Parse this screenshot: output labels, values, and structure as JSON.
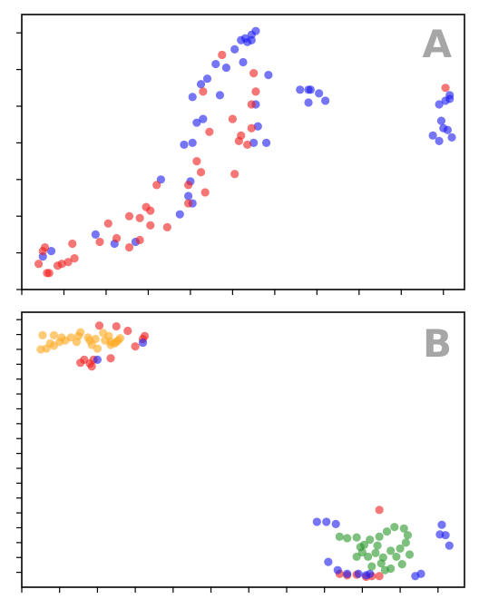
{
  "colors": {
    "red": "#f02020",
    "blue": "#2020f0",
    "orange": "#ffaa22",
    "green": "#2e9a2e",
    "panel_letter": "#a6a6a6"
  },
  "chart_data": [
    {
      "type": "scatter",
      "panel_label": "A",
      "tick_labels": "none",
      "xlim": [
        0,
        10.5
      ],
      "ylim": [
        0,
        7.5
      ],
      "x_ticks": [
        0,
        1,
        2,
        3,
        4,
        5,
        6,
        7,
        8,
        9,
        10
      ],
      "y_ticks": [
        0,
        1,
        2,
        3,
        4,
        5,
        6,
        7
      ],
      "series": [
        {
          "color_key": "blue",
          "points": [
            [
              0.7,
              1.05
            ],
            [
              0.5,
              0.9
            ],
            [
              1.75,
              1.5
            ],
            [
              2.2,
              1.25
            ],
            [
              2.7,
              1.3
            ],
            [
              3.3,
              3.0
            ],
            [
              3.75,
              2.05
            ],
            [
              3.95,
              2.55
            ],
            [
              4.0,
              2.95
            ],
            [
              4.05,
              2.35
            ],
            [
              3.85,
              3.95
            ],
            [
              4.05,
              4.0
            ],
            [
              4.15,
              4.55
            ],
            [
              4.3,
              4.65
            ],
            [
              4.05,
              5.25
            ],
            [
              4.25,
              5.6
            ],
            [
              4.4,
              5.75
            ],
            [
              4.6,
              6.15
            ],
            [
              4.85,
              6.05
            ],
            [
              4.7,
              5.3
            ],
            [
              5.05,
              6.55
            ],
            [
              5.2,
              6.8
            ],
            [
              5.3,
              6.85
            ],
            [
              5.45,
              6.95
            ],
            [
              5.35,
              6.75
            ],
            [
              5.45,
              6.8
            ],
            [
              5.55,
              7.05
            ],
            [
              5.25,
              6.2
            ],
            [
              5.55,
              5.05
            ],
            [
              5.6,
              4.45
            ],
            [
              5.5,
              4.0
            ],
            [
              5.8,
              4.0
            ],
            [
              5.85,
              5.85
            ],
            [
              6.6,
              5.45
            ],
            [
              6.8,
              5.45
            ],
            [
              6.85,
              5.45
            ],
            [
              7.05,
              5.35
            ],
            [
              7.2,
              5.15
            ],
            [
              6.8,
              5.1
            ],
            [
              10.15,
              5.3
            ],
            [
              9.9,
              5.05
            ],
            [
              10.05,
              5.15
            ],
            [
              10.15,
              5.2
            ],
            [
              9.95,
              4.6
            ],
            [
              10.1,
              4.35
            ],
            [
              10.2,
              4.15
            ],
            [
              10.0,
              4.4
            ],
            [
              9.75,
              4.2
            ],
            [
              9.9,
              4.05
            ]
          ]
        },
        {
          "color_key": "red",
          "points": [
            [
              0.55,
              1.15
            ],
            [
              0.5,
              1.05
            ],
            [
              0.4,
              0.7
            ],
            [
              0.6,
              0.45
            ],
            [
              0.65,
              0.45
            ],
            [
              0.85,
              0.65
            ],
            [
              0.95,
              0.7
            ],
            [
              1.1,
              0.75
            ],
            [
              1.25,
              0.85
            ],
            [
              1.2,
              1.25
            ],
            [
              1.85,
              1.3
            ],
            [
              2.05,
              1.8
            ],
            [
              2.25,
              1.4
            ],
            [
              2.55,
              2.0
            ],
            [
              2.55,
              1.15
            ],
            [
              2.8,
              1.95
            ],
            [
              2.8,
              1.35
            ],
            [
              2.95,
              2.25
            ],
            [
              3.05,
              1.75
            ],
            [
              3.2,
              2.85
            ],
            [
              3.45,
              1.7
            ],
            [
              3.05,
              2.15
            ],
            [
              3.95,
              2.85
            ],
            [
              4.25,
              3.2
            ],
            [
              4.35,
              2.65
            ],
            [
              3.95,
              2.35
            ],
            [
              4.15,
              3.5
            ],
            [
              4.45,
              4.3
            ],
            [
              4.3,
              5.4
            ],
            [
              4.75,
              6.4
            ],
            [
              5.15,
              4.05
            ],
            [
              5.2,
              4.2
            ],
            [
              5.0,
              4.65
            ],
            [
              5.05,
              3.15
            ],
            [
              5.45,
              4.4
            ],
            [
              5.45,
              5.05
            ],
            [
              5.5,
              5.9
            ],
            [
              5.55,
              5.4
            ],
            [
              5.35,
              3.95
            ],
            [
              10.05,
              5.5
            ]
          ]
        }
      ]
    },
    {
      "type": "scatter",
      "panel_label": "B",
      "tick_labels": "none",
      "xlim": [
        0,
        11.7
      ],
      "ylim": [
        0,
        18.5
      ],
      "x_ticks": [
        0,
        1,
        2,
        3,
        4,
        5,
        6,
        7,
        8,
        9,
        10,
        11
      ],
      "y_ticks": [
        1,
        2,
        3,
        4,
        5,
        6,
        7,
        8,
        9,
        10,
        11,
        12,
        13,
        14,
        15,
        16,
        17,
        18
      ],
      "series": [
        {
          "color_key": "orange",
          "points": [
            [
              0.5,
              16.0
            ],
            [
              0.65,
              16.05
            ],
            [
              0.75,
              16.4
            ],
            [
              0.85,
              16.25
            ],
            [
              1.0,
              16.5
            ],
            [
              1.15,
              16.6
            ],
            [
              1.3,
              16.8
            ],
            [
              1.45,
              16.5
            ],
            [
              1.5,
              16.9
            ],
            [
              1.75,
              16.8
            ],
            [
              1.8,
              16.6
            ],
            [
              1.85,
              16.3
            ],
            [
              1.95,
              16.7
            ],
            [
              2.0,
              16.05
            ],
            [
              2.2,
              16.6
            ],
            [
              2.3,
              16.9
            ],
            [
              2.35,
              16.3
            ],
            [
              2.5,
              16.5
            ],
            [
              2.6,
              16.75
            ],
            [
              2.35,
              16.5
            ],
            [
              0.55,
              16.95
            ],
            [
              0.85,
              16.95
            ],
            [
              1.05,
              16.8
            ],
            [
              1.55,
              17.15
            ],
            [
              2.15,
              17.1
            ],
            [
              2.55,
              16.6
            ],
            [
              2.45,
              16.4
            ]
          ]
        },
        {
          "color_key": "red",
          "points": [
            [
              1.55,
              15.1
            ],
            [
              1.65,
              15.3
            ],
            [
              1.8,
              15.05
            ],
            [
              1.85,
              14.85
            ],
            [
              1.9,
              15.3
            ],
            [
              2.05,
              17.6
            ],
            [
              2.35,
              15.4
            ],
            [
              2.5,
              17.55
            ],
            [
              2.8,
              17.25
            ],
            [
              3.0,
              16.2
            ],
            [
              3.2,
              16.7
            ],
            [
              3.25,
              16.9
            ],
            [
              9.45,
              5.2
            ],
            [
              8.4,
              0.9
            ],
            [
              8.6,
              0.8
            ],
            [
              8.85,
              0.85
            ],
            [
              9.1,
              0.7
            ],
            [
              9.25,
              0.75
            ],
            [
              9.45,
              0.75
            ]
          ]
        },
        {
          "color_key": "blue",
          "points": [
            [
              2.0,
              15.3
            ],
            [
              3.2,
              16.45
            ],
            [
              7.8,
              4.4
            ],
            [
              8.05,
              4.4
            ],
            [
              8.3,
              4.25
            ],
            [
              8.1,
              1.7
            ],
            [
              8.35,
              1.15
            ],
            [
              8.6,
              0.9
            ],
            [
              8.9,
              0.9
            ],
            [
              9.1,
              0.8
            ],
            [
              9.2,
              0.9
            ],
            [
              10.4,
              0.75
            ],
            [
              10.55,
              0.9
            ],
            [
              11.1,
              4.2
            ],
            [
              11.2,
              3.5
            ],
            [
              11.05,
              3.55
            ],
            [
              11.3,
              2.8
            ]
          ]
        },
        {
          "color_key": "green",
          "points": [
            [
              8.4,
              3.4
            ],
            [
              8.6,
              3.3
            ],
            [
              8.85,
              3.35
            ],
            [
              9.05,
              2.85
            ],
            [
              9.2,
              3.2
            ],
            [
              9.45,
              3.4
            ],
            [
              9.65,
              3.75
            ],
            [
              9.85,
              4.05
            ],
            [
              10.1,
              3.95
            ],
            [
              10.2,
              3.5
            ],
            [
              10.0,
              2.6
            ],
            [
              9.75,
              2.45
            ],
            [
              9.55,
              2.0
            ],
            [
              9.35,
              2.3
            ],
            [
              9.15,
              2.05
            ],
            [
              9.0,
              2.35
            ],
            [
              8.85,
              2.05
            ],
            [
              9.25,
              1.4
            ],
            [
              9.5,
              1.6
            ],
            [
              9.75,
              1.25
            ],
            [
              10.05,
              1.55
            ],
            [
              10.25,
              2.2
            ],
            [
              9.6,
              1.15
            ],
            [
              9.9,
              2.05
            ],
            [
              10.15,
              3.0
            ],
            [
              9.4,
              2.8
            ],
            [
              8.95,
              2.7
            ]
          ]
        }
      ]
    }
  ]
}
